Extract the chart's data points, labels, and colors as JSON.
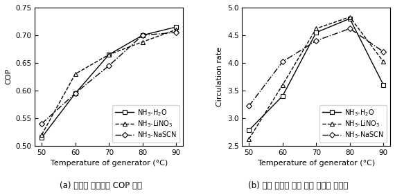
{
  "x": [
    50,
    60,
    70,
    80,
    90
  ],
  "cop_h2o": [
    0.515,
    0.595,
    0.665,
    0.7,
    0.715
  ],
  "cop_lino3": [
    0.52,
    0.63,
    0.665,
    0.688,
    0.71
  ],
  "cop_nascn": [
    0.54,
    0.595,
    0.645,
    0.7,
    0.705
  ],
  "cr_h2o": [
    2.78,
    3.4,
    4.55,
    4.8,
    3.6
  ],
  "cr_lino3": [
    2.62,
    3.6,
    4.62,
    4.83,
    4.02
  ],
  "cr_nascn": [
    3.22,
    4.02,
    4.4,
    4.62,
    4.2
  ],
  "xlabel": "Temperature of generator (°C)",
  "ylabel_left": "COP",
  "ylabel_right": "Circulation rate",
  "label_h2o": "NH$_3$-H$_2$O",
  "label_lino3": "NH$_3$-LiNO$_3$",
  "label_nascn": "NH$_3$-NaSCN",
  "ylim_left": [
    0.5,
    0.75
  ],
  "ylim_right": [
    2.5,
    5.0
  ],
  "yticks_left": [
    0.5,
    0.55,
    0.6,
    0.65,
    0.7,
    0.75
  ],
  "yticks_right": [
    2.5,
    3.0,
    3.5,
    4.0,
    4.5,
    5.0
  ],
  "xticks": [
    50,
    60,
    70,
    80,
    90
  ],
  "caption_left": "(a) 흡수식 냉동기의 COP 변화",
  "caption_right": "(b) 냉매 유량에 대한 혼합 용액의 유량비",
  "bg_color": "white",
  "legend_fontsize": 7.0,
  "tick_fontsize": 7.5,
  "label_fontsize": 8.0,
  "caption_fontsize": 8.5
}
